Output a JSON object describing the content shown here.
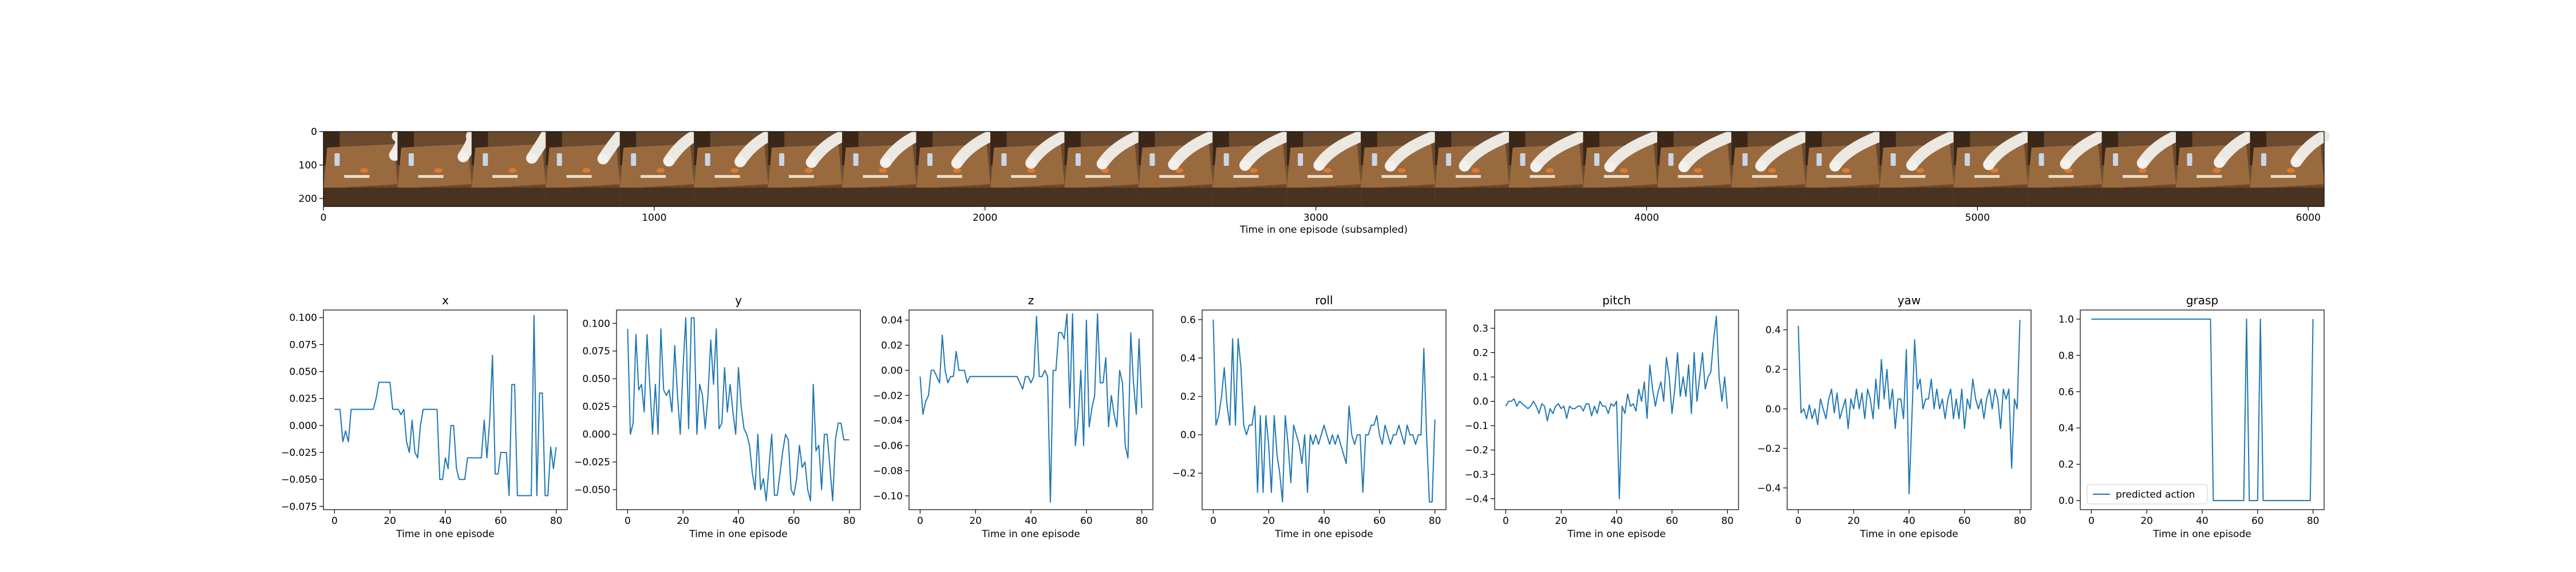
{
  "colors": {
    "series": "#1f77b4",
    "axes": "#000000",
    "background": "#ffffff"
  },
  "strip": {
    "xlabel": "Time in one episode (subsampled)",
    "x_ticks": [
      "0",
      "1000",
      "2000",
      "3000",
      "4000",
      "5000",
      "6000"
    ],
    "y_ticks": [
      "0",
      "100",
      "200"
    ],
    "xlim": [
      0,
      6048
    ],
    "ylim": [
      224,
      0
    ],
    "frames": [
      {
        "arm": 0.05
      },
      {
        "arm": 0.15
      },
      {
        "arm": 0.25
      },
      {
        "arm": 0.3
      },
      {
        "arm": 0.45
      },
      {
        "arm": 0.5
      },
      {
        "arm": 0.55
      },
      {
        "arm": 0.55
      },
      {
        "arm": 0.6
      },
      {
        "arm": 0.6
      },
      {
        "arm": 0.65
      },
      {
        "arm": 0.7
      },
      {
        "arm": 0.75
      },
      {
        "arm": 0.75
      },
      {
        "arm": 0.8
      },
      {
        "arm": 0.8
      },
      {
        "arm": 0.85
      },
      {
        "arm": 0.85
      },
      {
        "arm": 0.85
      },
      {
        "arm": 0.8
      },
      {
        "arm": 0.8
      },
      {
        "arm": 0.75
      },
      {
        "arm": 0.7
      },
      {
        "arm": 0.65
      },
      {
        "arm": 0.6
      },
      {
        "arm": 0.55
      },
      {
        "arm": 0.5
      }
    ]
  },
  "chart_data": [
    {
      "type": "line",
      "title": "x",
      "xlabel": "Time in one episode",
      "ylabel": "",
      "xlim": [
        -4,
        84
      ],
      "ylim": [
        -0.078,
        0.107
      ],
      "x_ticks": [
        0,
        20,
        40,
        60,
        80
      ],
      "y_ticks": [
        -0.075,
        -0.05,
        -0.025,
        0.0,
        0.025,
        0.05,
        0.075,
        0.1
      ],
      "y_tick_labels": [
        "−0.075",
        "−0.050",
        "−0.025",
        "0.000",
        "0.025",
        "0.050",
        "0.075",
        "0.100"
      ],
      "values": [
        0.015,
        0.015,
        0.015,
        -0.015,
        -0.005,
        -0.015,
        0.015,
        0.015,
        0.015,
        0.015,
        0.015,
        0.015,
        0.015,
        0.015,
        0.015,
        0.025,
        0.04,
        0.04,
        0.04,
        0.04,
        0.04,
        0.015,
        0.015,
        0.015,
        0.01,
        0.015,
        -0.015,
        -0.025,
        0.005,
        -0.025,
        -0.03,
        0.0,
        0.015,
        0.015,
        0.015,
        0.015,
        0.015,
        0.015,
        -0.05,
        -0.05,
        -0.03,
        -0.04,
        0.0,
        0.0,
        -0.04,
        -0.05,
        -0.05,
        -0.05,
        -0.03,
        -0.03,
        -0.03,
        -0.03,
        -0.03,
        -0.03,
        0.005,
        -0.03,
        0.005,
        0.065,
        -0.045,
        -0.045,
        -0.025,
        -0.025,
        -0.025,
        -0.065,
        0.038,
        0.038,
        -0.065,
        -0.065,
        -0.065,
        -0.065,
        -0.065,
        -0.065,
        0.102,
        -0.065,
        0.03,
        0.03,
        -0.065,
        -0.065,
        -0.02,
        -0.04,
        -0.02
      ]
    },
    {
      "type": "line",
      "title": "y",
      "xlabel": "Time in one episode",
      "ylabel": "",
      "xlim": [
        -4,
        84
      ],
      "ylim": [
        -0.068,
        0.112
      ],
      "x_ticks": [
        0,
        20,
        40,
        60,
        80
      ],
      "y_ticks": [
        -0.05,
        -0.025,
        0.0,
        0.025,
        0.05,
        0.075,
        0.1
      ],
      "y_tick_labels": [
        "−0.050",
        "−0.025",
        "0.000",
        "0.025",
        "0.050",
        "0.075",
        "0.100"
      ],
      "values": [
        0.095,
        0.0,
        0.01,
        0.09,
        0.04,
        0.045,
        0.02,
        0.09,
        0.045,
        0.0,
        0.045,
        0.0,
        0.095,
        0.04,
        0.035,
        0.04,
        0.02,
        0.08,
        0.035,
        0.0,
        0.06,
        0.105,
        0.005,
        0.105,
        0.105,
        0.0,
        0.045,
        0.035,
        0.005,
        0.035,
        0.085,
        0.045,
        0.095,
        0.005,
        0.01,
        0.06,
        0.02,
        0.045,
        0.02,
        0.0,
        0.06,
        0.025,
        0.005,
        0.0,
        -0.01,
        -0.035,
        -0.05,
        0.0,
        -0.05,
        -0.04,
        -0.06,
        -0.03,
        0.0,
        -0.055,
        -0.055,
        -0.035,
        -0.015,
        0.0,
        -0.005,
        -0.05,
        -0.055,
        -0.04,
        -0.01,
        -0.03,
        -0.025,
        -0.05,
        -0.06,
        0.045,
        -0.015,
        -0.01,
        -0.05,
        0.0,
        0.0,
        -0.03,
        -0.06,
        -0.005,
        0.01,
        0.01,
        -0.005,
        -0.005,
        -0.005
      ]
    },
    {
      "type": "line",
      "title": "z",
      "xlabel": "Time in one episode",
      "ylabel": "",
      "xlim": [
        -4,
        84
      ],
      "ylim": [
        -0.111,
        0.048
      ],
      "x_ticks": [
        0,
        20,
        40,
        60,
        80
      ],
      "y_ticks": [
        -0.1,
        -0.08,
        -0.06,
        -0.04,
        -0.02,
        0.0,
        0.02,
        0.04
      ],
      "y_tick_labels": [
        "−0.10",
        "−0.08",
        "−0.06",
        "−0.04",
        "−0.02",
        "0.00",
        "0.02",
        "0.04"
      ],
      "values": [
        -0.005,
        -0.035,
        -0.025,
        -0.02,
        0.0,
        0.0,
        -0.005,
        -0.01,
        0.028,
        0.0,
        -0.01,
        -0.005,
        -0.005,
        0.015,
        0.0,
        0.0,
        0.0,
        -0.01,
        -0.005,
        -0.005,
        -0.005,
        -0.005,
        -0.005,
        -0.005,
        -0.005,
        -0.005,
        -0.005,
        -0.005,
        -0.005,
        -0.005,
        -0.005,
        -0.005,
        -0.005,
        -0.005,
        -0.005,
        -0.005,
        -0.01,
        -0.015,
        -0.005,
        -0.005,
        -0.01,
        -0.005,
        0.043,
        -0.005,
        -0.005,
        0.0,
        -0.005,
        -0.105,
        0.0,
        0.0,
        0.03,
        0.03,
        0.025,
        0.045,
        -0.03,
        0.045,
        -0.06,
        -0.04,
        0.0,
        -0.06,
        0.04,
        -0.045,
        -0.03,
        -0.02,
        0.045,
        -0.01,
        -0.01,
        0.01,
        -0.045,
        -0.02,
        -0.035,
        -0.045,
        0.0,
        -0.01,
        -0.06,
        -0.07,
        0.03,
        -0.01,
        -0.035,
        0.025,
        -0.03
      ]
    },
    {
      "type": "line",
      "title": "roll",
      "xlabel": "Time in one episode",
      "ylabel": "",
      "xlim": [
        -4,
        84
      ],
      "ylim": [
        -0.39,
        0.65
      ],
      "x_ticks": [
        0,
        20,
        40,
        60,
        80
      ],
      "y_ticks": [
        -0.2,
        0.0,
        0.2,
        0.4,
        0.6
      ],
      "y_tick_labels": [
        "−0.2",
        "0.0",
        "0.2",
        "0.4",
        "0.6"
      ],
      "values": [
        0.6,
        0.05,
        0.1,
        0.2,
        0.35,
        0.15,
        0.05,
        0.5,
        0.05,
        0.5,
        0.35,
        0.05,
        0.0,
        0.05,
        0.05,
        0.15,
        -0.3,
        0.1,
        -0.3,
        0.1,
        -0.05,
        -0.3,
        0.1,
        -0.1,
        -0.2,
        -0.35,
        0.1,
        -0.05,
        -0.25,
        0.05,
        0.0,
        -0.05,
        -0.15,
        0.0,
        -0.3,
        0.0,
        -0.05,
        0.0,
        -0.05,
        0.0,
        0.05,
        0.0,
        -0.05,
        0.0,
        -0.05,
        0.0,
        -0.05,
        -0.1,
        -0.15,
        0.15,
        0.0,
        -0.05,
        0.0,
        0.0,
        -0.3,
        0.0,
        0.0,
        0.05,
        0.05,
        0.1,
        0.0,
        -0.05,
        0.05,
        0.0,
        -0.05,
        0.0,
        0.0,
        0.05,
        0.0,
        -0.05,
        0.05,
        0.0,
        0.0,
        -0.05,
        0.0,
        0.0,
        0.45,
        0.0,
        -0.35,
        -0.35,
        0.08
      ]
    },
    {
      "type": "line",
      "title": "pitch",
      "xlabel": "Time in one episode",
      "ylabel": "",
      "xlim": [
        -4,
        84
      ],
      "ylim": [
        -0.445,
        0.375
      ],
      "x_ticks": [
        0,
        20,
        40,
        60,
        80
      ],
      "y_ticks": [
        -0.4,
        -0.3,
        -0.2,
        -0.1,
        0.0,
        0.1,
        0.2,
        0.3
      ],
      "y_tick_labels": [
        "−0.4",
        "−0.3",
        "−0.2",
        "−0.1",
        "0.0",
        "0.1",
        "0.2",
        "0.3"
      ],
      "values": [
        -0.02,
        0.0,
        0.0,
        0.01,
        -0.02,
        0.0,
        -0.01,
        -0.02,
        -0.03,
        -0.02,
        0.0,
        -0.02,
        -0.05,
        -0.01,
        -0.02,
        -0.08,
        -0.03,
        -0.05,
        -0.02,
        -0.01,
        -0.03,
        -0.02,
        -0.07,
        -0.02,
        -0.03,
        -0.03,
        -0.02,
        -0.02,
        -0.04,
        -0.01,
        -0.01,
        -0.06,
        -0.02,
        -0.05,
        0.0,
        -0.02,
        -0.02,
        -0.05,
        -0.01,
        -0.02,
        0.0,
        -0.4,
        -0.02,
        -0.05,
        0.03,
        -0.02,
        -0.01,
        -0.04,
        0.05,
        0.0,
        0.08,
        -0.07,
        0.15,
        0.05,
        -0.02,
        0.04,
        0.08,
        0.0,
        0.18,
        0.1,
        -0.05,
        0.05,
        0.2,
        0.02,
        0.1,
        0.02,
        0.15,
        -0.05,
        0.2,
        0.0,
        0.1,
        0.2,
        0.05,
        0.1,
        0.12,
        0.25,
        0.35,
        0.1,
        0.0,
        0.1,
        -0.03
      ]
    },
    {
      "type": "line",
      "title": "yaw",
      "xlabel": "Time in one episode",
      "ylabel": "",
      "xlim": [
        -4,
        84
      ],
      "ylim": [
        -0.51,
        0.5
      ],
      "x_ticks": [
        0,
        20,
        40,
        60,
        80
      ],
      "y_ticks": [
        -0.4,
        -0.2,
        0.0,
        0.2,
        0.4
      ],
      "y_tick_labels": [
        "−0.4",
        "−0.2",
        "0.0",
        "0.2",
        "0.4"
      ],
      "values": [
        0.42,
        -0.02,
        0.0,
        -0.05,
        0.02,
        -0.05,
        0.0,
        -0.08,
        0.05,
        0.0,
        -0.05,
        0.05,
        0.1,
        -0.02,
        0.08,
        -0.05,
        0.0,
        0.05,
        -0.1,
        0.05,
        0.0,
        0.1,
        0.0,
        0.08,
        -0.05,
        0.1,
        0.05,
        -0.05,
        0.15,
        0.0,
        0.25,
        0.05,
        0.2,
        0.0,
        0.1,
        -0.1,
        0.05,
        0.05,
        -0.05,
        0.3,
        -0.43,
        -0.05,
        0.35,
        0.1,
        0.15,
        0.0,
        0.05,
        0.05,
        0.15,
        0.0,
        0.1,
        0.0,
        0.05,
        -0.05,
        0.05,
        0.1,
        -0.05,
        0.05,
        -0.05,
        0.1,
        -0.1,
        0.05,
        0.0,
        0.15,
        0.05,
        0.0,
        0.05,
        -0.05,
        0.05,
        0.1,
        0.0,
        0.1,
        0.05,
        -0.1,
        0.1,
        0.05,
        0.1,
        -0.3,
        0.05,
        0.0,
        0.45
      ]
    },
    {
      "type": "line",
      "title": "grasp",
      "xlabel": "Time in one episode",
      "ylabel": "",
      "xlim": [
        -4,
        84
      ],
      "ylim": [
        -0.05,
        1.05
      ],
      "x_ticks": [
        0,
        20,
        40,
        60,
        80
      ],
      "y_ticks": [
        0.0,
        0.2,
        0.4,
        0.6,
        0.8,
        1.0
      ],
      "y_tick_labels": [
        "0.0",
        "0.2",
        "0.4",
        "0.6",
        "0.8",
        "1.0"
      ],
      "legend": {
        "label": "predicted action",
        "position": "lower left"
      },
      "values": [
        1,
        1,
        1,
        1,
        1,
        1,
        1,
        1,
        1,
        1,
        1,
        1,
        1,
        1,
        1,
        1,
        1,
        1,
        1,
        1,
        1,
        1,
        1,
        1,
        1,
        1,
        1,
        1,
        1,
        1,
        1,
        1,
        1,
        1,
        1,
        1,
        1,
        1,
        1,
        1,
        1,
        1,
        1,
        1,
        0,
        0,
        0,
        0,
        0,
        0,
        0,
        0,
        0,
        0,
        0,
        0,
        1,
        0,
        0,
        0,
        0,
        1,
        0,
        0,
        0,
        0,
        0,
        0,
        0,
        0,
        0,
        0,
        0,
        0,
        0,
        0,
        0,
        0,
        0,
        0,
        1
      ]
    }
  ]
}
